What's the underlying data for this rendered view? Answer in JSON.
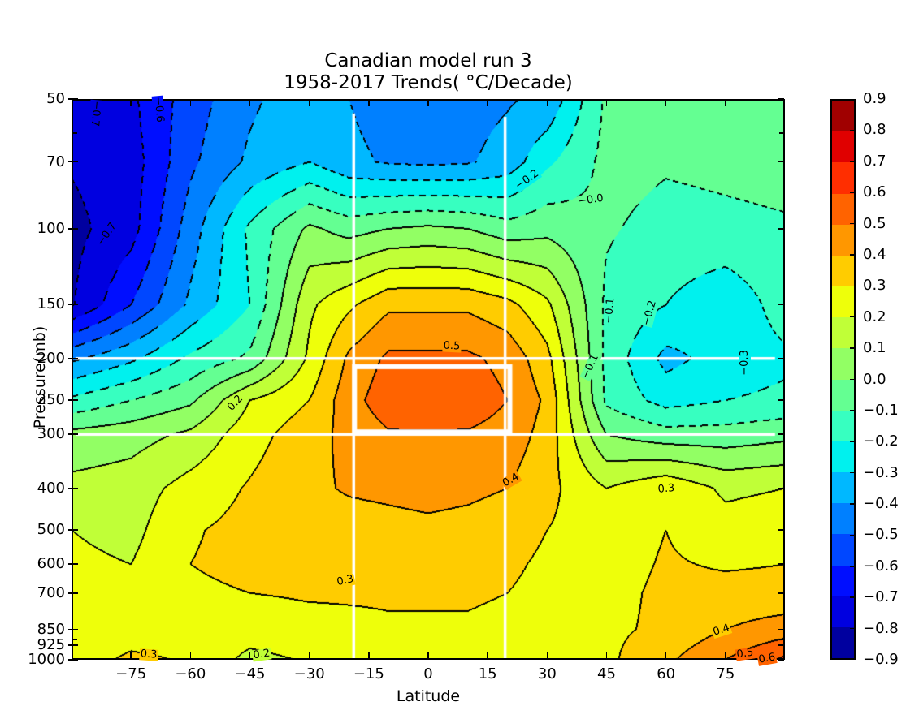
{
  "title": {
    "line1": "Canadian model run 3",
    "line2": "1958-2017 Trends( °C/Decade)"
  },
  "axes": {
    "x": {
      "label": "Latitude",
      "range": [
        -90,
        90
      ],
      "ticks": [
        {
          "value": -75,
          "label": "−75"
        },
        {
          "value": -60,
          "label": "−60"
        },
        {
          "value": -45,
          "label": "−45"
        },
        {
          "value": -30,
          "label": "−30"
        },
        {
          "value": -15,
          "label": "−15"
        },
        {
          "value": 0,
          "label": "0"
        },
        {
          "value": 15,
          "label": "15"
        },
        {
          "value": 30,
          "label": "30"
        },
        {
          "value": 45,
          "label": "45"
        },
        {
          "value": 60,
          "label": "60"
        },
        {
          "value": 75,
          "label": "75"
        }
      ]
    },
    "y": {
      "label": "Pressure(mb)",
      "range": [
        50,
        1000
      ],
      "scale": "log",
      "ticks": [
        {
          "value": 50,
          "label": "50"
        },
        {
          "value": 70,
          "label": "70"
        },
        {
          "value": 100,
          "label": "100"
        },
        {
          "value": 150,
          "label": "150"
        },
        {
          "value": 200,
          "label": "200"
        },
        {
          "value": 250,
          "label": "250"
        },
        {
          "value": 300,
          "label": "300"
        },
        {
          "value": 400,
          "label": "400"
        },
        {
          "value": 500,
          "label": "500"
        },
        {
          "value": 600,
          "label": "600"
        },
        {
          "value": 700,
          "label": "700"
        },
        {
          "value": 850,
          "label": "850"
        },
        {
          "value": 925,
          "label": "925"
        },
        {
          "value": 1000,
          "label": "1000"
        }
      ],
      "minor_ticks": [
        60,
        80,
        90,
        800,
        900
      ]
    }
  },
  "colorbar": {
    "tick_labels": [
      "0.9",
      "0.8",
      "0.7",
      "0.6",
      "0.5",
      "0.4",
      "0.3",
      "0.2",
      "0.1",
      "0.0",
      "−0.1",
      "−0.2",
      "−0.3",
      "−0.4",
      "−0.5",
      "−0.6",
      "−0.7",
      "−0.8",
      "−0.9"
    ]
  },
  "chart_data": {
    "type": "heatmap",
    "title": "Canadian model run 3 — 1958-2017 Trends (°C/Decade)",
    "xlabel": "Latitude",
    "ylabel": "Pressure(mb)",
    "units": "°C/Decade",
    "levels_min": -0.9,
    "levels_max": 0.9,
    "contour_interval": 0.1,
    "negative_contours": "dashed",
    "band_colors": [
      "#00009F",
      "#0000E0",
      "#000EFF",
      "#0047FF",
      "#0080FF",
      "#00B8FF",
      "#00F1EE",
      "#37FFC0",
      "#64FF92",
      "#92FF64",
      "#C0FF37",
      "#EEFF0A",
      "#FFCC00",
      "#FF9700",
      "#FF6300",
      "#FF2E00",
      "#E00000",
      "#A00000"
    ],
    "x": [
      -90,
      -75,
      -60,
      -45,
      -30,
      -20,
      -10,
      0,
      10,
      20,
      30,
      45,
      60,
      75,
      90
    ],
    "y": [
      50,
      70,
      100,
      150,
      200,
      250,
      300,
      400,
      500,
      600,
      700,
      850,
      1000
    ],
    "values": [
      [
        -0.76,
        -0.72,
        -0.55,
        -0.42,
        -0.33,
        -0.4,
        -0.44,
        -0.46,
        -0.44,
        -0.41,
        -0.38,
        -0.08,
        -0.07,
        -0.06,
        -0.05
      ],
      [
        -0.79,
        -0.75,
        -0.52,
        -0.38,
        -0.3,
        -0.38,
        -0.41,
        -0.42,
        -0.41,
        -0.36,
        -0.22,
        -0.07,
        -0.09,
        -0.08,
        -0.07
      ],
      [
        -0.83,
        -0.74,
        -0.45,
        -0.18,
        0.02,
        -0.04,
        0.0,
        0.02,
        0.0,
        -0.06,
        -0.03,
        -0.09,
        -0.13,
        -0.12,
        -0.11
      ],
      [
        -0.81,
        -0.6,
        -0.38,
        -0.2,
        0.18,
        0.28,
        0.38,
        0.38,
        0.38,
        0.33,
        0.22,
        -0.12,
        -0.2,
        -0.28,
        -0.15
      ],
      [
        -0.42,
        -0.32,
        -0.18,
        -0.08,
        0.22,
        0.42,
        0.52,
        0.52,
        0.52,
        0.47,
        0.33,
        -0.13,
        -0.33,
        -0.26,
        -0.22
      ],
      [
        -0.18,
        -0.1,
        -0.02,
        0.2,
        0.3,
        0.46,
        0.56,
        0.57,
        0.56,
        0.5,
        0.38,
        -0.12,
        -0.24,
        -0.2,
        -0.18
      ],
      [
        0.03,
        0.06,
        0.12,
        0.26,
        0.36,
        0.43,
        0.49,
        0.49,
        0.49,
        0.46,
        0.36,
        0.0,
        -0.06,
        -0.06,
        -0.03
      ],
      [
        0.13,
        0.15,
        0.24,
        0.31,
        0.38,
        0.41,
        0.42,
        0.43,
        0.42,
        0.4,
        0.33,
        0.2,
        0.28,
        0.18,
        0.2
      ],
      [
        0.2,
        0.17,
        0.29,
        0.33,
        0.36,
        0.36,
        0.37,
        0.38,
        0.37,
        0.35,
        0.3,
        0.25,
        0.3,
        0.24,
        0.26
      ],
      [
        0.22,
        0.2,
        0.3,
        0.33,
        0.33,
        0.32,
        0.33,
        0.34,
        0.34,
        0.32,
        0.28,
        0.26,
        0.31,
        0.29,
        0.3
      ],
      [
        0.22,
        0.22,
        0.28,
        0.3,
        0.31,
        0.31,
        0.31,
        0.31,
        0.31,
        0.3,
        0.27,
        0.27,
        0.32,
        0.33,
        0.33
      ],
      [
        0.23,
        0.25,
        0.26,
        0.25,
        0.27,
        0.28,
        0.29,
        0.29,
        0.29,
        0.28,
        0.26,
        0.28,
        0.32,
        0.4,
        0.45
      ],
      [
        0.25,
        0.32,
        0.29,
        0.17,
        0.21,
        0.26,
        0.27,
        0.28,
        0.28,
        0.28,
        0.27,
        0.28,
        0.38,
        0.5,
        0.62
      ]
    ],
    "contour_labels": [
      {
        "text": "−0.7",
        "lat": -84,
        "p": 54,
        "rot": 95
      },
      {
        "text": "−0.6",
        "lat": -68,
        "p": 53,
        "rot": 85
      },
      {
        "text": "−0.7",
        "lat": -81,
        "p": 103,
        "rot": -55
      },
      {
        "text": "−0.2",
        "lat": 25,
        "p": 77,
        "rot": -35
      },
      {
        "text": "−0.0",
        "lat": 41,
        "p": 86,
        "rot": -8
      },
      {
        "text": "0.5",
        "lat": 6,
        "p": 188,
        "rot": 3
      },
      {
        "text": "0.2",
        "lat": -48.5,
        "p": 254,
        "rot": -48
      },
      {
        "text": "−0.1",
        "lat": 46,
        "p": 155,
        "rot": -85
      },
      {
        "text": "−0.2",
        "lat": 56,
        "p": 157,
        "rot": -75
      },
      {
        "text": "−0.3",
        "lat": 80,
        "p": 205,
        "rot": -90
      },
      {
        "text": "−0.1",
        "lat": 41,
        "p": 209,
        "rot": -65
      },
      {
        "text": "0.4",
        "lat": 21,
        "p": 384,
        "rot": -30
      },
      {
        "text": "0.3",
        "lat": 60,
        "p": 402,
        "rot": -5
      },
      {
        "text": "0.3",
        "lat": -21,
        "p": 657,
        "rot": -12
      },
      {
        "text": "0.3",
        "lat": -70.5,
        "p": 975,
        "rot": 4
      },
      {
        "text": "0.2",
        "lat": -42,
        "p": 975,
        "rot": -8
      },
      {
        "text": "0.4",
        "lat": 74,
        "p": 856,
        "rot": -18
      },
      {
        "text": "0.5",
        "lat": 80,
        "p": 970,
        "rot": -8
      },
      {
        "text": "0.6",
        "lat": 85.5,
        "p": 995,
        "rot": -10
      }
    ],
    "annotations": {
      "color": "#ffffff",
      "vlines": [
        {
          "lat": -18.8,
          "p_from": 54,
          "p_to": 995,
          "width": 3.5
        },
        {
          "lat": 19.4,
          "p_from": 55,
          "p_to": 995,
          "width": 3.5
        }
      ],
      "hlines": [
        {
          "p": 200,
          "lat_from": -89,
          "lat_to": 87.5,
          "width": 3.5
        },
        {
          "p": 300,
          "lat_from": -89,
          "lat_to": 87.5,
          "width": 3.5
        }
      ],
      "box": {
        "lat_from": -18.6,
        "lat_to": 20.6,
        "p_from": 209,
        "p_to": 296,
        "width": 6
      }
    }
  }
}
